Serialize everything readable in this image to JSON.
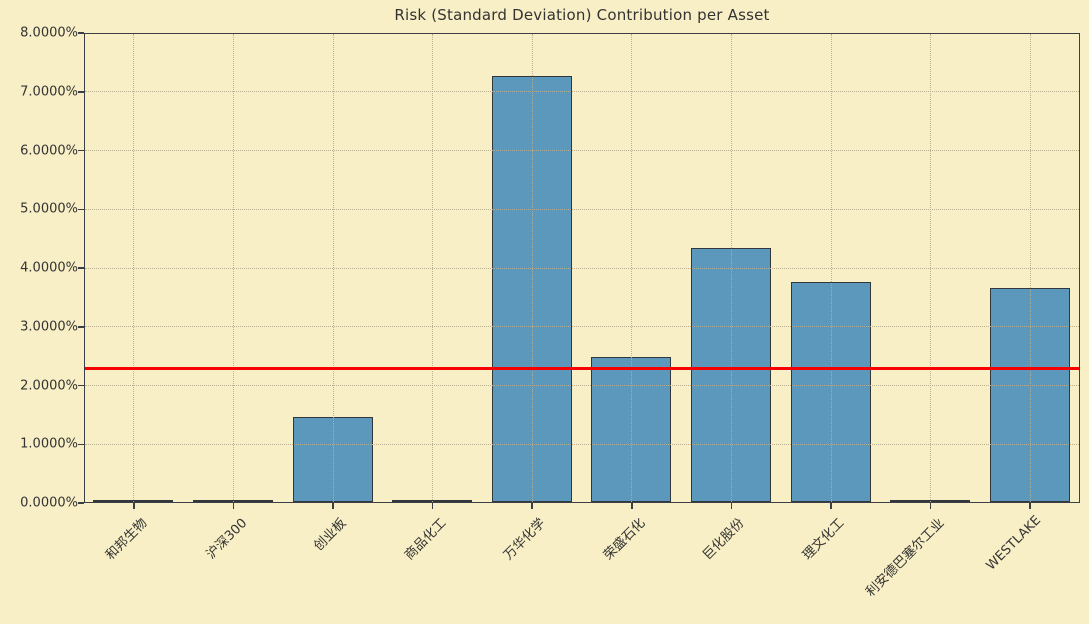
{
  "chart_data": {
    "type": "bar",
    "title": "Risk (Standard Deviation) Contribution per Asset",
    "categories": [
      "和邦生物",
      "沪深300",
      "创业板",
      "商品化工",
      "万华化学",
      "荣盛石化",
      "巨化股份",
      "理文化工",
      "利安德巴塞尔工业",
      "WESTLAKE"
    ],
    "values": [
      0.0,
      0.0,
      1.45,
      0.0,
      7.25,
      2.46,
      4.33,
      3.75,
      0.0,
      3.65
    ],
    "xlabel": "",
    "ylabel": "",
    "ylim": [
      0,
      8
    ],
    "ytick_labels": [
      "0.0000%",
      "1.0000%",
      "2.0000%",
      "3.0000%",
      "4.0000%",
      "5.0000%",
      "6.0000%",
      "7.0000%",
      "8.0000%"
    ],
    "grid": true,
    "gridstyle": "dotted",
    "legend_position": "none",
    "reference_line": {
      "name": "mean-risk-contribution",
      "value": 2.3,
      "color": "#f80000"
    },
    "colors": {
      "background": "#f8efc6",
      "bar_fill": "#5b98bb",
      "bar_edge": "#32373c",
      "axis": "#3c4046",
      "grid": "#b9ae90",
      "text": "#333333"
    }
  }
}
